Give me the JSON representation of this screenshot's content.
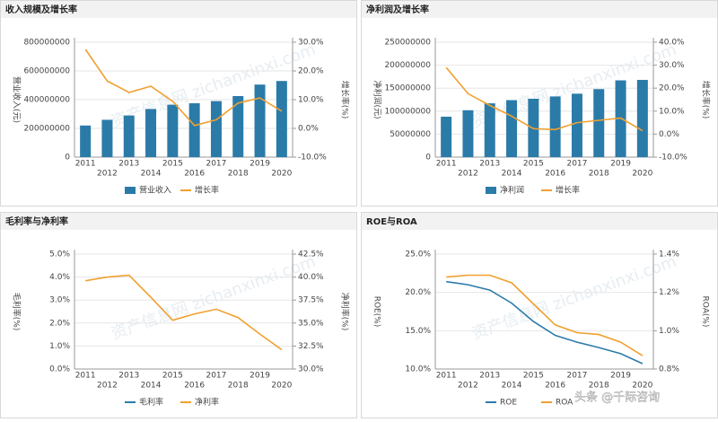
{
  "chart_data": [
    {
      "type": "bar_line",
      "title": "收入规模及增长率",
      "categories": [
        "2011",
        "2012",
        "2013",
        "2014",
        "2015",
        "2016",
        "2017",
        "2018",
        "2019",
        "2020"
      ],
      "series": [
        {
          "name": "营业收入",
          "kind": "bar",
          "color": "#2b7ba9",
          "values": [
            220000000,
            260000000,
            290000000,
            335000000,
            365000000,
            375000000,
            390000000,
            425000000,
            505000000,
            530000000
          ]
        },
        {
          "name": "增长率",
          "kind": "line",
          "axis": "y2",
          "color": "#f0a030",
          "values": [
            27.5,
            16.5,
            12.5,
            14.7,
            9.4,
            1.0,
            3.0,
            8.8,
            10.6,
            6.0
          ]
        }
      ],
      "ylabel": "营业收入(元)",
      "y2label": "增长率(%)",
      "ylim": [
        0,
        800000000
      ],
      "yticks": [
        0,
        200000000,
        400000000,
        600000000,
        800000000
      ],
      "y2lim": [
        -10,
        30
      ],
      "y2ticks": [
        {
          "value": -10,
          "label": "-10.0%"
        },
        {
          "value": 0,
          "label": "0.0%"
        },
        {
          "value": 10,
          "label": "10.0%"
        },
        {
          "value": 20,
          "label": "20.0%"
        },
        {
          "value": 30,
          "label": "30.0%"
        }
      ]
    },
    {
      "type": "bar_line",
      "title": "净利润及增长率",
      "categories": [
        "2011",
        "2012",
        "2013",
        "2014",
        "2015",
        "2016",
        "2017",
        "2018",
        "2019",
        "2020"
      ],
      "series": [
        {
          "name": "净利润",
          "kind": "bar",
          "color": "#2b7ba9",
          "values": [
            88000000,
            102000000,
            117000000,
            124000000,
            127000000,
            132000000,
            138000000,
            148000000,
            167000000,
            168000000
          ]
        },
        {
          "name": "增长率",
          "kind": "line",
          "axis": "y2",
          "color": "#f0a030",
          "values": [
            29.0,
            17.6,
            12.5,
            7.8,
            2.4,
            2.0,
            5.0,
            6.0,
            7.0,
            1.5
          ]
        }
      ],
      "ylabel": "净利润(元)",
      "y2label": "增长率(%)",
      "ylim": [
        0,
        250000000
      ],
      "yticks": [
        0,
        50000000,
        100000000,
        150000000,
        200000000,
        250000000
      ],
      "y2lim": [
        -10,
        40
      ],
      "y2ticks": [
        {
          "value": -10,
          "label": "-10.0%"
        },
        {
          "value": 0,
          "label": "0.0%"
        },
        {
          "value": 10,
          "label": "10.0%"
        },
        {
          "value": 20,
          "label": "20.0%"
        },
        {
          "value": 30,
          "label": "30.0%"
        },
        {
          "value": 40,
          "label": "40.0%"
        }
      ]
    },
    {
      "type": "line",
      "title": "毛利率与净利率",
      "categories": [
        "2011",
        "2012",
        "2013",
        "2014",
        "2015",
        "2016",
        "2017",
        "2018",
        "2019",
        "2020"
      ],
      "series": [
        {
          "name": "毛利率",
          "kind": "line",
          "color": "#2b7ba9",
          "values": [
            null,
            null,
            null,
            null,
            null,
            null,
            null,
            null,
            null,
            null
          ]
        },
        {
          "name": "净利率",
          "kind": "line",
          "axis": "y2",
          "color": "#f0a030",
          "values": [
            39.6,
            40.0,
            40.2,
            37.8,
            35.3,
            36.0,
            36.5,
            35.6,
            33.8,
            32.1
          ]
        }
      ],
      "ylabel": "毛利率(%)",
      "y2label": "净利率(%)",
      "ylim": [
        0,
        5
      ],
      "yticks": [
        {
          "value": 0,
          "label": "0.0%"
        },
        {
          "value": 1,
          "label": "1.0%"
        },
        {
          "value": 2,
          "label": "2.0%"
        },
        {
          "value": 3,
          "label": "3.0%"
        },
        {
          "value": 4,
          "label": "4.0%"
        },
        {
          "value": 5,
          "label": "5.0%"
        }
      ],
      "y2lim": [
        30,
        42.5
      ],
      "y2ticks": [
        {
          "value": 30,
          "label": "30.0%"
        },
        {
          "value": 32.5,
          "label": "32.5%"
        },
        {
          "value": 35,
          "label": "35.0%"
        },
        {
          "value": 37.5,
          "label": "37.5%"
        },
        {
          "value": 40,
          "label": "40.0%"
        },
        {
          "value": 42.5,
          "label": "42.5%"
        }
      ]
    },
    {
      "type": "line",
      "title": "ROE与ROA",
      "categories": [
        "2011",
        "2012",
        "2013",
        "2014",
        "2015",
        "2016",
        "2017",
        "2018",
        "2019",
        "2020"
      ],
      "series": [
        {
          "name": "ROE",
          "kind": "line",
          "color": "#2b7ba9",
          "values": [
            21.4,
            21.0,
            20.3,
            18.6,
            16.2,
            14.4,
            13.5,
            12.8,
            12.0,
            10.7
          ]
        },
        {
          "name": "ROA",
          "kind": "line",
          "axis": "y2",
          "color": "#f0a030",
          "values": [
            1.28,
            1.29,
            1.29,
            1.25,
            1.14,
            1.03,
            0.99,
            0.98,
            0.94,
            0.87
          ]
        }
      ],
      "ylabel": "ROE(%)",
      "y2label": "ROA(%)",
      "ylim": [
        10,
        25
      ],
      "yticks": [
        {
          "value": 10,
          "label": "10.0%"
        },
        {
          "value": 15,
          "label": "15.0%"
        },
        {
          "value": 20,
          "label": "20.0%"
        },
        {
          "value": 25,
          "label": "25.0%"
        }
      ],
      "y2lim": [
        0.8,
        1.4
      ],
      "y2ticks": [
        {
          "value": 0.8,
          "label": "0.8%"
        },
        {
          "value": 1.0,
          "label": "1.0%"
        },
        {
          "value": 1.2,
          "label": "1.2%"
        },
        {
          "value": 1.4,
          "label": "1.4%"
        }
      ]
    }
  ],
  "background_watermark": "资产信息网 zichanxinxi.com",
  "corner_watermark": "头条 @千际咨询"
}
